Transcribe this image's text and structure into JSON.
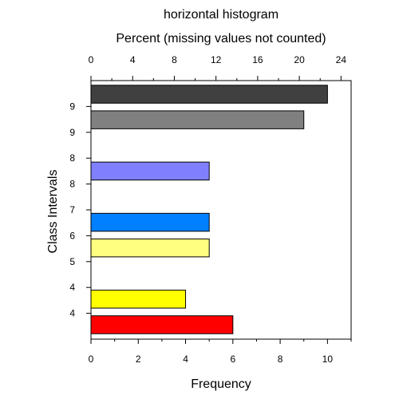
{
  "chart_data": {
    "type": "bar",
    "orientation": "horizontal",
    "title": "horizontal histogram",
    "xlabel": "Frequency",
    "top_xlabel": "Percent (missing values not counted)",
    "ylabel": "Class Intervals",
    "xlim": [
      0,
      11
    ],
    "x_ticks": [
      0,
      2,
      4,
      6,
      8,
      10
    ],
    "top_ticks": [
      0,
      4,
      8,
      12,
      16,
      20,
      24
    ],
    "top_scale_percent_per_unit": 2.27,
    "y_tick_labels": [
      "4",
      "4",
      "5",
      "6",
      "7",
      "8",
      "8",
      "9",
      "9"
    ],
    "grid": false,
    "bars": [
      {
        "value": 6,
        "color": "#ff0000"
      },
      {
        "value": 4,
        "color": "#ffff00"
      },
      {
        "value": 0,
        "color": "#ffff40"
      },
      {
        "value": 5,
        "color": "#ffff80"
      },
      {
        "value": 5,
        "color": "#0080ff"
      },
      {
        "value": 0,
        "color": "#4040ff"
      },
      {
        "value": 5,
        "color": "#8080ff"
      },
      {
        "value": 0,
        "color": "#a0a0a0"
      },
      {
        "value": 9,
        "color": "#808080"
      },
      {
        "value": 10,
        "color": "#404040"
      }
    ]
  }
}
